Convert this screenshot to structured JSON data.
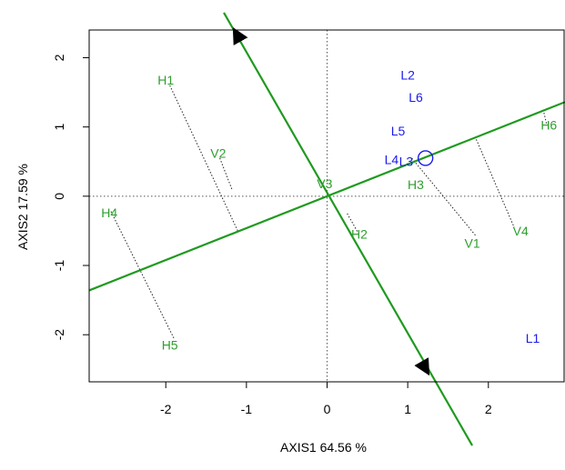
{
  "chart_data": {
    "type": "scatter",
    "title": "",
    "xlabel": "AXIS1 64.56 %",
    "ylabel": "AXIS2 17.59 %",
    "xlim": [
      -2.95,
      2.95
    ],
    "ylim": [
      -2.68,
      2.4
    ],
    "xticks": [
      -2,
      -1,
      0,
      1,
      2
    ],
    "yticks": [
      -2,
      -1,
      0,
      1,
      2
    ],
    "xtick_labels": [
      "-2",
      "-1",
      "0",
      "1",
      "2"
    ],
    "ytick_labels": [
      "-2",
      "-1",
      "0",
      "1",
      "2"
    ],
    "grid": false,
    "reference_lines": "dotted at x=0 and y=0",
    "colors": {
      "biplot_axes": "#1f9a1f",
      "points_green": "#2e9e2e",
      "points_blue": "#1a1aee",
      "projection": "#000000"
    },
    "series": [
      {
        "color": "#2e9e2e",
        "points": [
          {
            "label": "H1",
            "x": -2.0,
            "y": 1.68
          },
          {
            "label": "V2",
            "x": -1.35,
            "y": 0.62
          },
          {
            "label": "V3",
            "x": -0.03,
            "y": 0.18
          },
          {
            "label": "H4",
            "x": -2.7,
            "y": -0.24
          },
          {
            "label": "H2",
            "x": 0.4,
            "y": -0.55
          },
          {
            "label": "H3",
            "x": 1.1,
            "y": 0.17
          },
          {
            "label": "V1",
            "x": 1.8,
            "y": -0.68
          },
          {
            "label": "V4",
            "x": 2.4,
            "y": -0.5
          },
          {
            "label": "H6",
            "x": 2.75,
            "y": 1.03
          },
          {
            "label": "H5",
            "x": -1.95,
            "y": -2.15
          }
        ]
      },
      {
        "color": "#1a1aee",
        "points": [
          {
            "label": "L2",
            "x": 1.0,
            "y": 1.75
          },
          {
            "label": "L6",
            "x": 1.1,
            "y": 1.43
          },
          {
            "label": "L5",
            "x": 0.88,
            "y": 0.94
          },
          {
            "label": "L4",
            "x": 0.8,
            "y": 0.53
          },
          {
            "label": "L3",
            "x": 0.98,
            "y": 0.5
          },
          {
            "label": "L1",
            "x": 2.55,
            "y": -2.05
          }
        ],
        "marker": {
          "label": "L3",
          "x": 1.22,
          "y": 0.55,
          "shape": "circle"
        }
      }
    ],
    "biplot_axes": [
      {
        "from": [
          -2.95,
          -1.36
        ],
        "to": [
          2.95,
          1.36
        ],
        "arrows": "none"
      },
      {
        "from": [
          -1.28,
          2.65
        ],
        "to": [
          1.8,
          -3.6
        ],
        "arrows": [
          [
            -1.15,
            2.4
          ],
          [
            1.25,
            -2.55
          ]
        ]
      }
    ],
    "projection_lines": [
      {
        "from": [
          -1.95,
          1.6
        ],
        "to": [
          -1.1,
          -0.52
        ]
      },
      {
        "from": [
          -1.33,
          0.55
        ],
        "to": [
          -1.18,
          0.1
        ]
      },
      {
        "from": [
          -2.68,
          -0.22
        ],
        "to": [
          -1.9,
          -2.05
        ]
      },
      {
        "from": [
          0.25,
          -0.25
        ],
        "to": [
          0.38,
          -0.52
        ]
      },
      {
        "from": [
          1.05,
          0.55
        ],
        "to": [
          1.85,
          -0.58
        ]
      },
      {
        "from": [
          1.85,
          0.82
        ],
        "to": [
          2.32,
          -0.45
        ]
      },
      {
        "from": [
          2.68,
          1.25
        ],
        "to": [
          2.72,
          1.05
        ]
      }
    ]
  }
}
